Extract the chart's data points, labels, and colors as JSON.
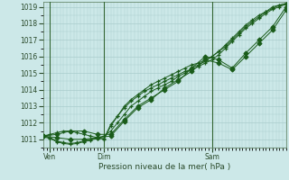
{
  "xlabel": "Pression niveau de la mer( hPa )",
  "background_color": "#cce8e8",
  "grid_color": "#aacccc",
  "line_color": "#1a5c1a",
  "vline_color": "#336633",
  "ylim": [
    1010.5,
    1019.3
  ],
  "xlim": [
    0,
    72
  ],
  "yticks": [
    1011,
    1012,
    1013,
    1014,
    1015,
    1016,
    1017,
    1018,
    1019
  ],
  "xtick_positions": [
    2,
    18,
    50
  ],
  "xtick_labels": [
    "Ven",
    "Dim",
    "Sam"
  ],
  "vlines": [
    2,
    18,
    50
  ],
  "series": [
    {
      "x": [
        0,
        2,
        4,
        6,
        8,
        10,
        12,
        14,
        16,
        18,
        20,
        22,
        24,
        26,
        28,
        30,
        32,
        34,
        36,
        38,
        40,
        42,
        44,
        46,
        48,
        50,
        52,
        54,
        56,
        58,
        60,
        62,
        64,
        66,
        68,
        70,
        72
      ],
      "y": [
        1011.2,
        1011.3,
        1011.4,
        1011.5,
        1011.5,
        1011.4,
        1011.3,
        1011.2,
        1011.1,
        1011.2,
        1011.5,
        1012.0,
        1012.5,
        1013.0,
        1013.3,
        1013.6,
        1013.9,
        1014.1,
        1014.3,
        1014.5,
        1014.8,
        1015.0,
        1015.3,
        1015.5,
        1015.7,
        1016.0,
        1016.3,
        1016.6,
        1017.0,
        1017.4,
        1017.8,
        1018.1,
        1018.4,
        1018.7,
        1018.9,
        1019.1,
        1019.2
      ],
      "marker": "+"
    },
    {
      "x": [
        0,
        2,
        4,
        6,
        8,
        10,
        12,
        14,
        16,
        18,
        20,
        22,
        24,
        26,
        28,
        30,
        32,
        34,
        36,
        38,
        40,
        42,
        44,
        46,
        48,
        50,
        52,
        54,
        56,
        58,
        60,
        62,
        64,
        66,
        68,
        70,
        72
      ],
      "y": [
        1011.2,
        1011.1,
        1010.9,
        1010.8,
        1010.75,
        1010.8,
        1010.9,
        1011.0,
        1011.1,
        1011.0,
        1011.8,
        1012.4,
        1013.0,
        1013.4,
        1013.7,
        1014.0,
        1014.3,
        1014.5,
        1014.7,
        1014.9,
        1015.1,
        1015.3,
        1015.5,
        1015.6,
        1015.8,
        1016.0,
        1016.3,
        1016.7,
        1017.1,
        1017.5,
        1017.9,
        1018.2,
        1018.5,
        1018.7,
        1019.0,
        1019.1,
        1019.2
      ],
      "marker": "+"
    },
    {
      "x": [
        0,
        2,
        4,
        6,
        8,
        10,
        12,
        14,
        16,
        18,
        20,
        22,
        24,
        26,
        28,
        30,
        32,
        34,
        36,
        38,
        40,
        42,
        44,
        46,
        48,
        50,
        52,
        54,
        56,
        58,
        60,
        62,
        64,
        66,
        68,
        70,
        72
      ],
      "y": [
        1011.15,
        1011.05,
        1010.85,
        1010.75,
        1010.7,
        1010.75,
        1010.85,
        1010.95,
        1011.05,
        1011.05,
        1011.9,
        1012.4,
        1012.9,
        1013.3,
        1013.6,
        1013.9,
        1014.1,
        1014.3,
        1014.5,
        1014.7,
        1014.9,
        1015.1,
        1015.2,
        1015.4,
        1015.6,
        1015.8,
        1016.1,
        1016.5,
        1016.9,
        1017.3,
        1017.7,
        1018.0,
        1018.3,
        1018.6,
        1018.85,
        1019.0,
        1019.15
      ],
      "marker": "+"
    },
    {
      "x": [
        0,
        4,
        8,
        12,
        16,
        20,
        24,
        28,
        32,
        36,
        40,
        44,
        48,
        52,
        56,
        60,
        64,
        68,
        72
      ],
      "y": [
        1011.2,
        1011.3,
        1011.5,
        1011.5,
        1011.3,
        1011.3,
        1012.2,
        1013.0,
        1013.5,
        1014.0,
        1014.5,
        1015.3,
        1016.0,
        1015.8,
        1015.3,
        1016.2,
        1017.0,
        1017.8,
        1019.0
      ],
      "marker": "D"
    },
    {
      "x": [
        0,
        4,
        8,
        12,
        16,
        20,
        24,
        28,
        32,
        36,
        40,
        44,
        48,
        52,
        56,
        60,
        64,
        68,
        72
      ],
      "y": [
        1011.2,
        1011.1,
        1011.0,
        1011.0,
        1011.1,
        1011.2,
        1012.1,
        1012.9,
        1013.4,
        1014.1,
        1014.6,
        1015.1,
        1015.8,
        1015.6,
        1015.2,
        1016.0,
        1016.8,
        1017.6,
        1018.8
      ],
      "marker": "D"
    }
  ]
}
